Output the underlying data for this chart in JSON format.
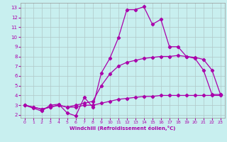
{
  "xlabel": "Windchill (Refroidissement éolien,°C)",
  "xlim": [
    -0.5,
    23.5
  ],
  "ylim": [
    1.7,
    13.5
  ],
  "xticks": [
    0,
    1,
    2,
    3,
    4,
    5,
    6,
    7,
    8,
    9,
    10,
    11,
    12,
    13,
    14,
    15,
    16,
    17,
    18,
    19,
    20,
    21,
    22,
    23
  ],
  "yticks": [
    2,
    3,
    4,
    5,
    6,
    7,
    8,
    9,
    10,
    11,
    12,
    13
  ],
  "background_color": "#c8efef",
  "line_color": "#aa00aa",
  "grid_color": "#b0c8c8",
  "line1_x": [
    0,
    1,
    2,
    3,
    4,
    5,
    6,
    7,
    8,
    9,
    10,
    11,
    12,
    13,
    14,
    15,
    16,
    17,
    18,
    19,
    20,
    21,
    22,
    23
  ],
  "line1_y": [
    3.0,
    2.7,
    2.4,
    3.0,
    3.1,
    2.2,
    1.9,
    3.8,
    2.8,
    6.3,
    7.8,
    9.9,
    12.8,
    12.8,
    13.1,
    11.3,
    11.8,
    9.0,
    9.0,
    8.0,
    7.8,
    6.6,
    4.1,
    4.1
  ],
  "line2_x": [
    0,
    1,
    2,
    3,
    4,
    5,
    6,
    7,
    8,
    9,
    10,
    11,
    12,
    13,
    14,
    15,
    16,
    17,
    18,
    19,
    20,
    21,
    22,
    23
  ],
  "line2_y": [
    3.0,
    2.8,
    2.6,
    2.8,
    3.0,
    2.8,
    2.8,
    3.0,
    3.0,
    3.2,
    3.4,
    3.6,
    3.7,
    3.8,
    3.9,
    3.9,
    4.0,
    4.0,
    4.0,
    4.0,
    4.0,
    4.0,
    4.0,
    4.0
  ],
  "line3_x": [
    0,
    1,
    2,
    3,
    4,
    5,
    6,
    7,
    8,
    9,
    10,
    11,
    12,
    13,
    14,
    15,
    16,
    17,
    18,
    19,
    20,
    21,
    22,
    23
  ],
  "line3_y": [
    3.0,
    2.8,
    2.6,
    2.8,
    3.0,
    2.8,
    3.0,
    3.2,
    3.4,
    5.0,
    6.2,
    7.0,
    7.4,
    7.6,
    7.8,
    7.9,
    8.0,
    8.0,
    8.1,
    8.0,
    7.9,
    7.7,
    6.6,
    4.1
  ]
}
